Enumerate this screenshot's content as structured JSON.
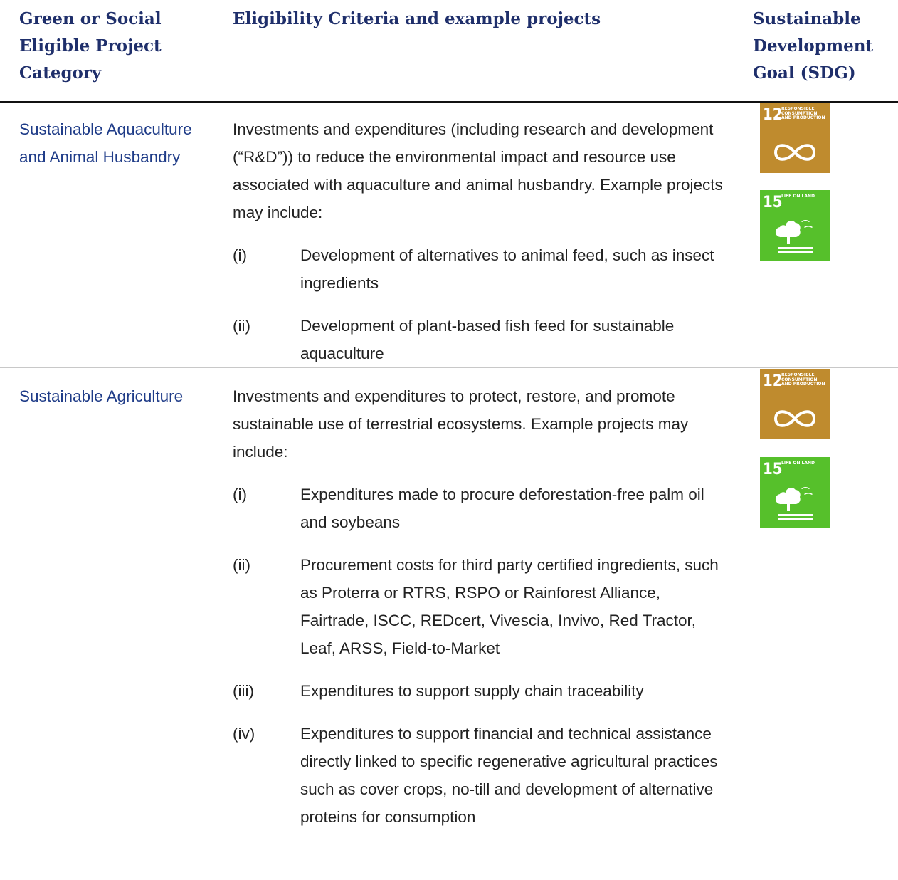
{
  "header": {
    "columns": [
      "Green or Social Eligible Project Category",
      "Eligibility Criteria and example projects",
      "Sustainable Development Goal (SDG)"
    ]
  },
  "table": {
    "rows": [
      {
        "category": "Sustainable Aquaculture and Animal Husbandry",
        "description": "Investments and expenditures (including research and development (“R&D”)) to reduce the environmental impact and resource use associated with aquaculture and animal husbandry. Example projects may include:",
        "items": [
          {
            "label": "(i)",
            "text": "Development of alternatives to animal feed, such as insect ingredients"
          },
          {
            "label": "(ii)",
            "text": "Development of plant-based fish feed for sustainable aquaculture"
          }
        ],
        "sdgs": [
          {
            "number": "12",
            "title": "RESPONSIBLE CONSUMPTION AND PRODUCTION",
            "color": "#bf8b2e"
          },
          {
            "number": "15",
            "title": "LIFE ON LAND",
            "color": "#56c02b"
          }
        ]
      },
      {
        "category": "Sustainable Agriculture",
        "description": "Investments and expenditures to protect, restore, and promote sustainable use of terrestrial ecosystems. Example projects may include:",
        "items": [
          {
            "label": "(i)",
            "text": "Expenditures made to procure deforestation-free palm oil and soybeans"
          },
          {
            "label": "(ii)",
            "text": "Procurement costs for third party certified ingredients, such as Proterra or RTRS, RSPO or Rainforest Alliance, Fairtrade, ISCC, REDcert, Vivescia, Invivo, Red Tractor, Leaf, ARSS, Field-to-Market"
          },
          {
            "label": "(iii)",
            "text": "Expenditures to support supply chain traceability"
          },
          {
            "label": "(iv)",
            "text": "Expenditures to support financial and technical assistance directly linked to specific regenerative agricultural practices such as cover crops, no-till and development of alternative proteins for consumption"
          }
        ],
        "sdgs": [
          {
            "number": "12",
            "title": "RESPONSIBLE CONSUMPTION AND PRODUCTION",
            "color": "#bf8b2e"
          },
          {
            "number": "15",
            "title": "LIFE ON LAND",
            "color": "#56c02b"
          }
        ]
      }
    ]
  }
}
